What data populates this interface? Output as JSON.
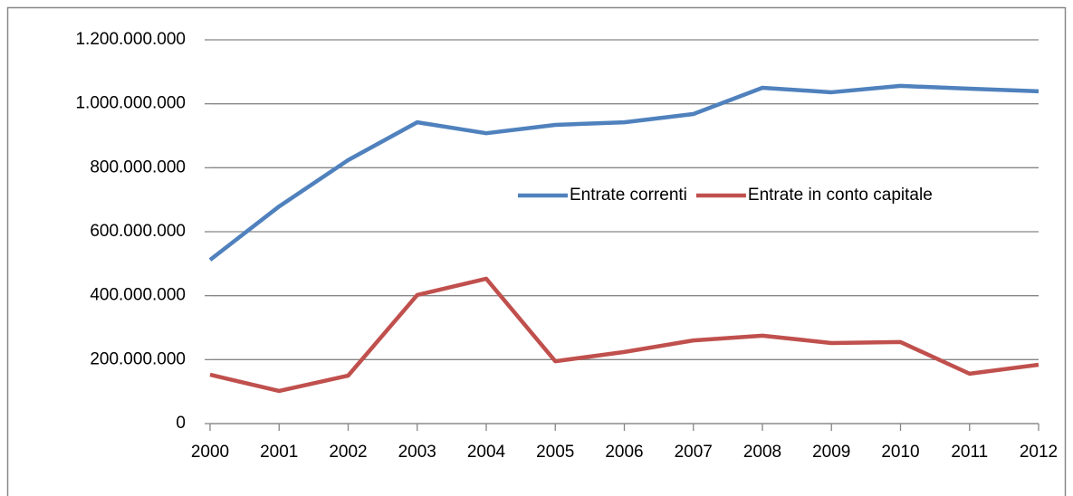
{
  "chart_data": {
    "type": "line",
    "categories": [
      "2000",
      "2001",
      "2002",
      "2003",
      "2004",
      "2005",
      "2006",
      "2007",
      "2008",
      "2009",
      "2010",
      "2011",
      "2012"
    ],
    "series": [
      {
        "name": "Entrate correnti",
        "color": "#4f81bd",
        "values": [
          512000000,
          679000000,
          824000000,
          942000000,
          908000000,
          934000000,
          942000000,
          968000000,
          1050000000,
          1036000000,
          1056000000,
          1047000000,
          1039000000
        ]
      },
      {
        "name": "Entrate in conto capitale",
        "color": "#c0504d",
        "values": [
          153000000,
          102000000,
          150000000,
          402000000,
          453000000,
          195000000,
          224000000,
          260000000,
          275000000,
          252000000,
          255000000,
          156000000,
          184000000
        ]
      }
    ],
    "ylim": [
      0,
      1200000000
    ],
    "yticks": [
      0,
      {
        "value": 200000000,
        "label": "200.000.000"
      },
      {
        "value": 400000000,
        "label": "400.000.000"
      },
      {
        "value": 600000000,
        "label": "600.000.000"
      },
      {
        "value": 800000000,
        "label": "800.000.000"
      },
      {
        "value": 1000000000,
        "label": "1.000.000.000"
      },
      {
        "value": 1200000000,
        "label": "1.200.000.000"
      }
    ],
    "grid": true,
    "legend": "center-right"
  }
}
